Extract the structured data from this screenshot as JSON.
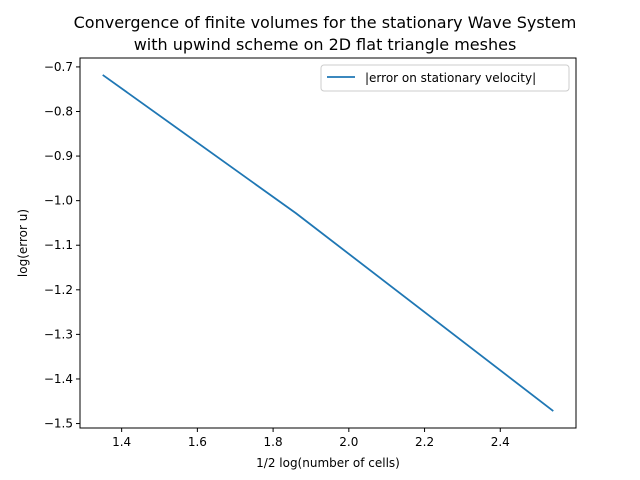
{
  "chart_data": {
    "type": "line",
    "title": [
      "Convergence of finite volumes for the stationary Wave System",
      "with upwind scheme on 2D flat triangle meshes"
    ],
    "xlabel": "1/2 log(number of cells)",
    "ylabel": "log(error u)",
    "xlim": [
      1.29,
      2.6
    ],
    "ylim": [
      -1.51,
      -0.68
    ],
    "xticks": [
      1.4,
      1.6,
      1.8,
      2.0,
      2.2,
      2.4
    ],
    "xtick_labels": [
      "1.4",
      "1.6",
      "1.8",
      "2.0",
      "2.2",
      "2.4"
    ],
    "yticks": [
      -0.7,
      -0.8,
      -0.9,
      -1.0,
      -1.1,
      -1.2,
      -1.3,
      -1.4,
      -1.5
    ],
    "ytick_labels": [
      "−0.7",
      "−0.8",
      "−0.9",
      "−1.0",
      "−1.1",
      "−1.2",
      "−1.3",
      "−1.4",
      "−1.5"
    ],
    "grid": false,
    "legend_position": "top-right",
    "series": [
      {
        "name": "|error on stationary velocity|",
        "color": "#1f77b4",
        "x": [
          1.35,
          1.86,
          2.54
        ],
        "y": [
          -0.718,
          -1.028,
          -1.472
        ]
      }
    ]
  }
}
